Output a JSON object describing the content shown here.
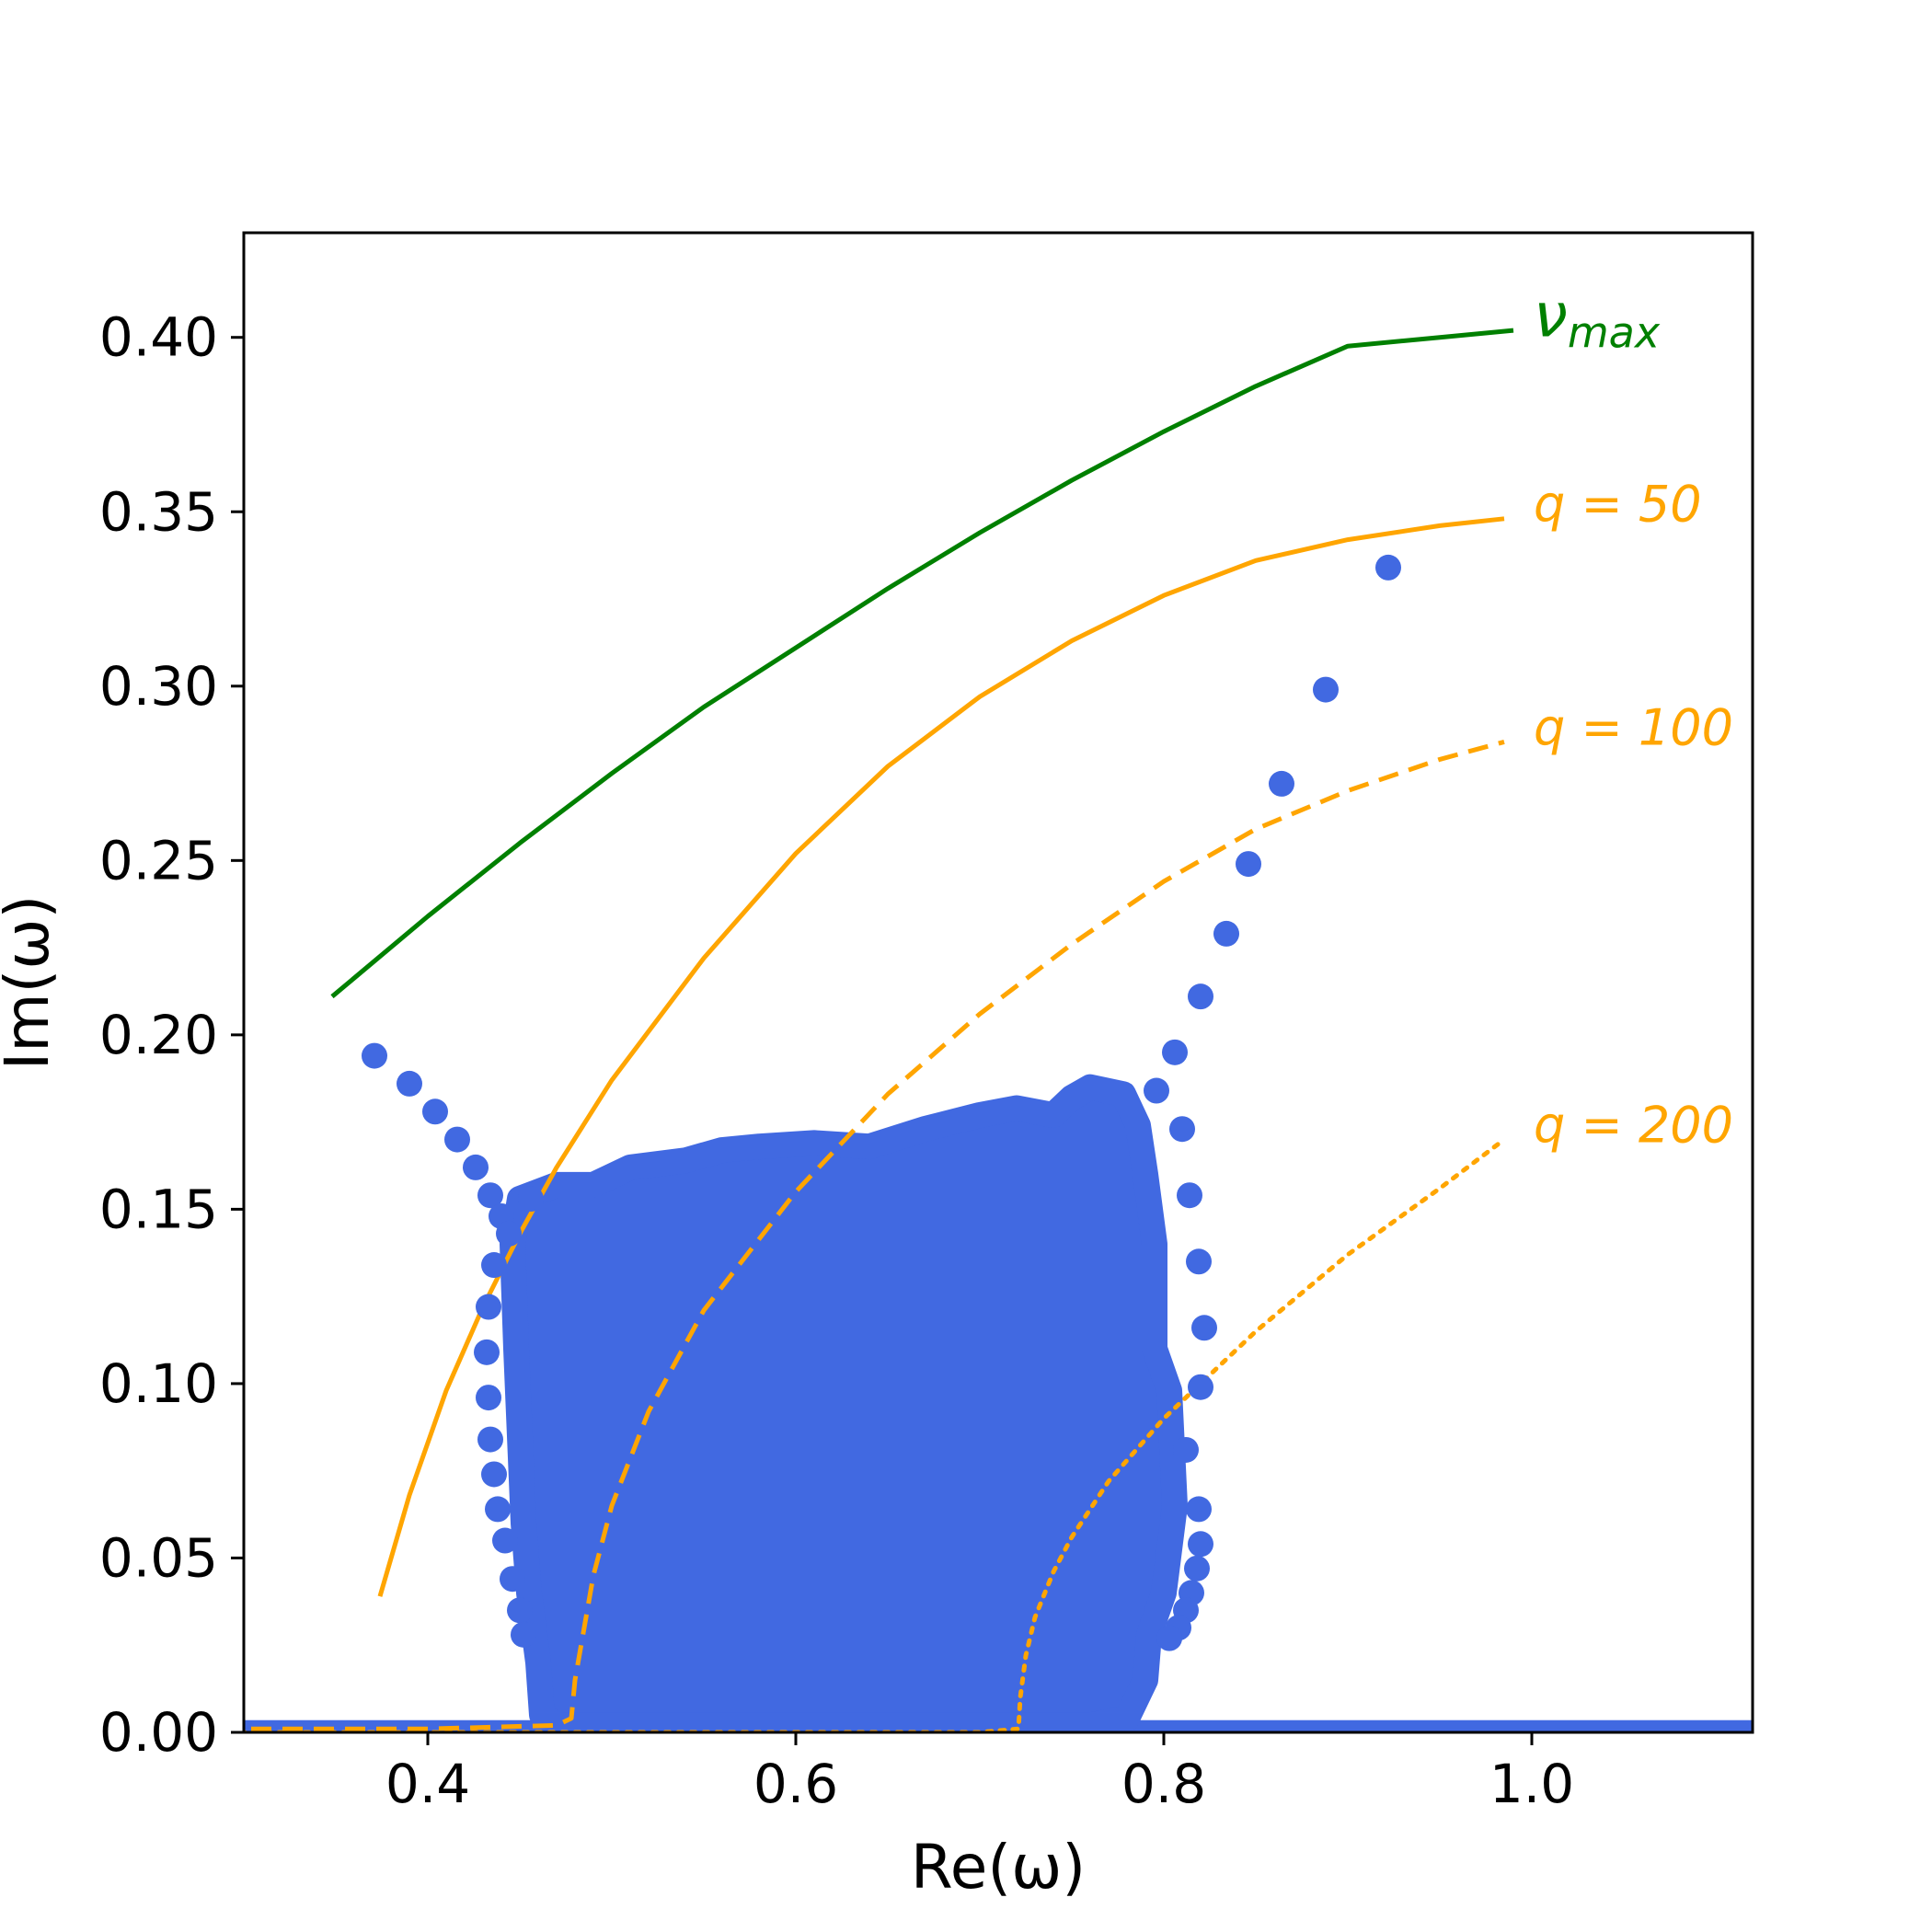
{
  "chart_data": {
    "type": "scatter",
    "xlabel": "Re(ω)",
    "ylabel": "Im(ω)",
    "xlim": [
      0.3,
      1.12
    ],
    "ylim": [
      0.0,
      0.43
    ],
    "x_ticks": [
      0.4,
      0.6,
      0.8,
      1.0
    ],
    "x_tick_labels": [
      "0.4",
      "0.6",
      "0.8",
      "1.0"
    ],
    "y_ticks": [
      0.0,
      0.05,
      0.1,
      0.15,
      0.2,
      0.25,
      0.3,
      0.35,
      0.4
    ],
    "y_tick_labels": [
      "0.00",
      "0.05",
      "0.10",
      "0.15",
      "0.20",
      "0.25",
      "0.30",
      "0.35",
      "0.40"
    ],
    "grid": false,
    "colors": {
      "points": "#4169e1",
      "nu_max": "#008000",
      "q_curves": "#ffa500",
      "axes": "#000000"
    },
    "annotations": [
      {
        "text": "ν",
        "subscript": "max",
        "color": "#008000",
        "x": 0.995,
        "y": 0.403
      },
      {
        "text": "q = 50",
        "color": "#ffa500",
        "x": 0.995,
        "y": 0.352
      },
      {
        "text": "q = 100",
        "color": "#ffa500",
        "x": 0.995,
        "y": 0.288
      },
      {
        "text": "q = 200",
        "color": "#ffa500",
        "x": 0.995,
        "y": 0.174
      }
    ],
    "lines": [
      {
        "id": "nu_max",
        "style": "solid",
        "color": "#008000",
        "x": [
          0.348,
          0.4,
          0.45,
          0.5,
          0.55,
          0.6,
          0.65,
          0.7,
          0.75,
          0.8,
          0.85,
          0.9,
          0.95,
          0.99
        ],
        "y": [
          0.211,
          0.234,
          0.255,
          0.275,
          0.294,
          0.311,
          0.328,
          0.344,
          0.359,
          0.373,
          0.386,
          0.3975,
          0.4,
          0.402
        ]
      },
      {
        "id": "q50",
        "style": "solid",
        "color": "#ffa500",
        "x": [
          0.374,
          0.39,
          0.41,
          0.43,
          0.45,
          0.47,
          0.5,
          0.55,
          0.6,
          0.65,
          0.7,
          0.75,
          0.8,
          0.85,
          0.9,
          0.95,
          0.985
        ],
        "y": [
          0.039,
          0.068,
          0.098,
          0.122,
          0.143,
          0.162,
          0.187,
          0.222,
          0.252,
          0.277,
          0.297,
          0.313,
          0.326,
          0.336,
          0.342,
          0.346,
          0.348
        ]
      },
      {
        "id": "q100",
        "style": "dashed",
        "color": "#ffa500",
        "x": [
          0.27,
          0.4,
          0.47,
          0.478,
          0.48,
          0.49,
          0.5,
          0.52,
          0.55,
          0.6,
          0.65,
          0.7,
          0.75,
          0.8,
          0.85,
          0.9,
          0.95,
          0.985
        ],
        "y": [
          0.001,
          0.001,
          0.002,
          0.004,
          0.015,
          0.045,
          0.065,
          0.092,
          0.121,
          0.155,
          0.183,
          0.206,
          0.226,
          0.244,
          0.259,
          0.27,
          0.279,
          0.284
        ]
      },
      {
        "id": "q200",
        "style": "dotted",
        "color": "#ffa500",
        "x": [
          0.27,
          0.5,
          0.7,
          0.721,
          0.722,
          0.725,
          0.73,
          0.74,
          0.75,
          0.77,
          0.8,
          0.85,
          0.9,
          0.95,
          0.985
        ],
        "y": [
          0.0,
          0.0,
          0.0,
          0.001,
          0.01,
          0.022,
          0.033,
          0.046,
          0.056,
          0.072,
          0.09,
          0.115,
          0.137,
          0.156,
          0.17
        ]
      }
    ],
    "points": {
      "name": "",
      "color": "#4169e1",
      "x": [
        0.371,
        0.39,
        0.404,
        0.416,
        0.426,
        0.434,
        0.44,
        0.444,
        0.436,
        0.433,
        0.432,
        0.433,
        0.434,
        0.436,
        0.438,
        0.442,
        0.446,
        0.45,
        0.452,
        0.456,
        0.812,
        0.82,
        0.822,
        0.819,
        0.814,
        0.81,
        0.796,
        0.806,
        0.819,
        0.82,
        0.818,
        0.815,
        0.812,
        0.808,
        0.803,
        0.82,
        0.834,
        0.846,
        0.864,
        0.888,
        0.922
      ],
      "y": [
        0.194,
        0.186,
        0.178,
        0.17,
        0.162,
        0.154,
        0.148,
        0.143,
        0.134,
        0.122,
        0.109,
        0.096,
        0.084,
        0.074,
        0.064,
        0.055,
        0.044,
        0.035,
        0.028,
        0.153,
        0.081,
        0.099,
        0.116,
        0.135,
        0.154,
        0.173,
        0.184,
        0.195,
        0.064,
        0.054,
        0.047,
        0.04,
        0.035,
        0.03,
        0.027,
        0.211,
        0.229,
        0.249,
        0.272,
        0.299,
        0.334
      ]
    },
    "cloud_outline": {
      "x": [
        0.446,
        0.45,
        0.47,
        0.49,
        0.51,
        0.54,
        0.56,
        0.58,
        0.61,
        0.64,
        0.67,
        0.7,
        0.72,
        0.74,
        0.75,
        0.76,
        0.778,
        0.786,
        0.79,
        0.795,
        0.795,
        0.803,
        0.806,
        0.8,
        0.792,
        0.79,
        0.78,
        0.76,
        0.73,
        0.7,
        0.65,
        0.6,
        0.55,
        0.5,
        0.47,
        0.462,
        0.46,
        0.455,
        0.452,
        0.45,
        0.448,
        0.446
      ],
      "y": [
        0.14,
        0.153,
        0.157,
        0.157,
        0.162,
        0.164,
        0.167,
        0.168,
        0.169,
        0.168,
        0.173,
        0.177,
        0.179,
        0.177,
        0.182,
        0.185,
        0.183,
        0.174,
        0.16,
        0.14,
        0.11,
        0.098,
        0.065,
        0.04,
        0.028,
        0.015,
        0.004,
        0.002,
        0.002,
        0.002,
        0.002,
        0.002,
        0.002,
        0.002,
        0.002,
        0.005,
        0.02,
        0.04,
        0.06,
        0.085,
        0.11,
        0.14
      ]
    },
    "baseline_band": {
      "x_from": 0.3,
      "x_to": 1.12,
      "y_from": 0.0,
      "y_to": 0.0035
    }
  }
}
